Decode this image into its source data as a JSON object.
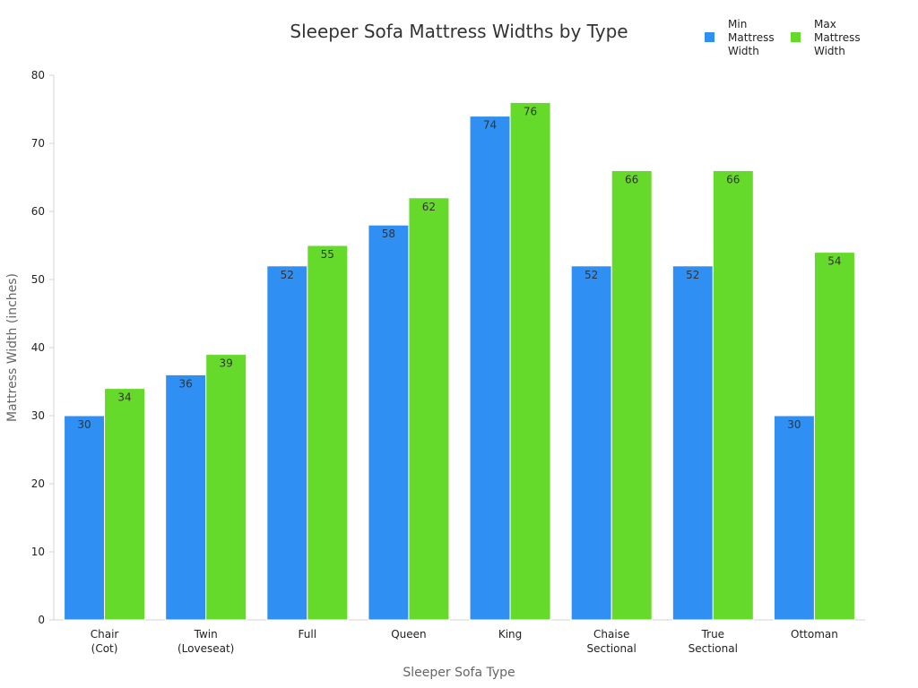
{
  "chart_data": {
    "type": "bar",
    "title": "Sleeper Sofa Mattress Widths by Type",
    "xlabel": "Sleeper Sofa Type",
    "ylabel": "Mattress Width (inches)",
    "categories": [
      [
        "Chair",
        "(Cot)"
      ],
      [
        "Twin",
        "(Loveseat)"
      ],
      [
        "Full"
      ],
      [
        "Queen"
      ],
      [
        "King"
      ],
      [
        "Chaise",
        "Sectional"
      ],
      [
        "True",
        "Sectional"
      ],
      [
        "Ottoman"
      ]
    ],
    "series": [
      {
        "name": [
          "Min",
          "Mattress",
          "Width"
        ],
        "color": "#2F8FF2",
        "values": [
          30,
          36,
          52,
          58,
          74,
          52,
          52,
          30
        ]
      },
      {
        "name": [
          "Max",
          "Mattress",
          "Width"
        ],
        "color": "#66DA2A",
        "values": [
          34,
          39,
          55,
          62,
          76,
          66,
          66,
          54
        ]
      }
    ],
    "ylim": [
      0,
      80
    ],
    "yticks": [
      0,
      10,
      20,
      30,
      40,
      50,
      60,
      70,
      80
    ],
    "grid": false,
    "legend_position": "top-right"
  }
}
